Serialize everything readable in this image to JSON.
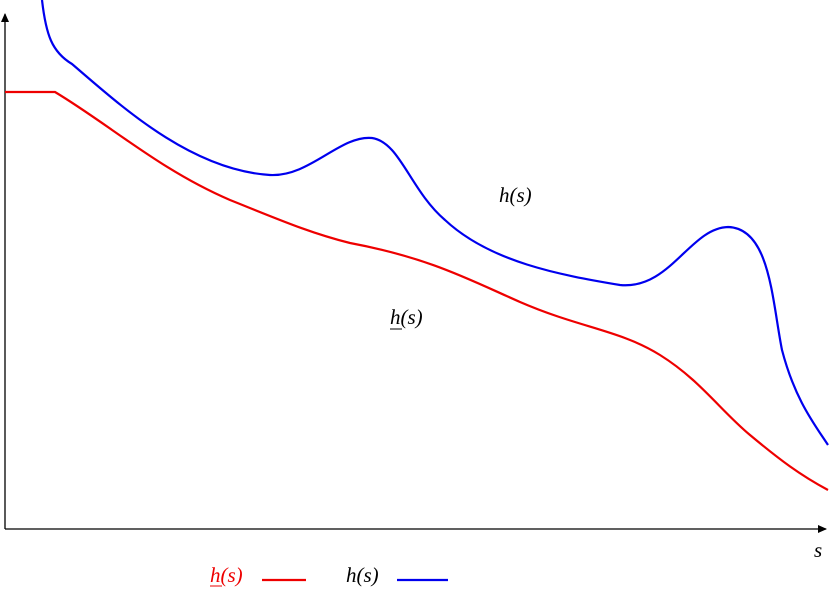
{
  "labels": {
    "upper": "h(s)",
    "lower": "h(s)"
  },
  "axis": {
    "x_label": "s"
  },
  "legend": [
    {
      "text": "h(s)"
    },
    {
      "text": "h(s)"
    }
  ]
}
